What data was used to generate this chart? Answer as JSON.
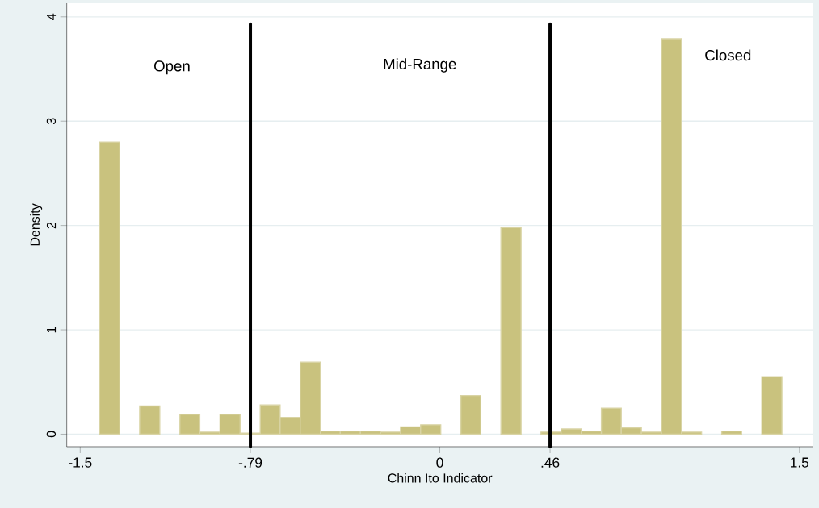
{
  "chart_data": {
    "type": "histogram",
    "xlabel": "Chinn Ito Indicator",
    "ylabel": "Density",
    "bins": [
      -1.419,
      -1.335,
      -1.252,
      -1.168,
      -1.084,
      -1.001,
      -0.917,
      -0.833,
      -0.749,
      -0.666,
      -0.582,
      -0.498,
      -0.415,
      -0.331,
      -0.247,
      -0.164,
      -0.08,
      0.004,
      0.088,
      0.171,
      0.255,
      0.339,
      0.422,
      0.506,
      0.59,
      0.674,
      0.757,
      0.841,
      0.925,
      1.008,
      1.092,
      1.176,
      1.259,
      1.343,
      1.427
    ],
    "values": [
      2.8,
      0,
      0.27,
      0,
      0.19,
      0.02,
      0.19,
      0.01,
      0.28,
      0.16,
      0.69,
      0.03,
      0.03,
      0.03,
      0.02,
      0.07,
      0.09,
      0,
      0.37,
      0,
      1.98,
      0,
      0.02,
      0.05,
      0.03,
      0.25,
      0.06,
      0.02,
      3.79,
      0.02,
      0,
      0.03,
      0,
      0.55
    ],
    "color": "#c9c27e",
    "xlim": [
      -1.556,
      1.557
    ],
    "ylim": [
      -0.12,
      4.13
    ],
    "xticks": [
      {
        "value": -1.5,
        "label": "-1.5"
      },
      {
        "value": -0.79,
        "label": "-.79"
      },
      0,
      {
        "value": 0.46,
        "label": ".46"
      },
      1.5
    ],
    "yticks": [
      0,
      1,
      2,
      3,
      4
    ],
    "grid": "y",
    "ref_lines": [
      {
        "axis": "x",
        "value": -0.79,
        "color": "#000000"
      },
      {
        "axis": "x",
        "value": 0.46,
        "color": "#000000"
      }
    ],
    "annotations": [
      "Open",
      "Mid-Range",
      "Closed"
    ]
  }
}
